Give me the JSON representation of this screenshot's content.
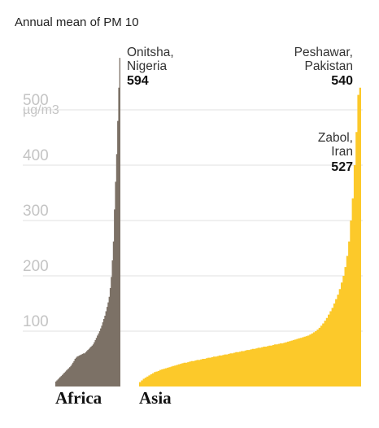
{
  "chart_data": {
    "type": "area",
    "title": "Annual mean of PM 10",
    "unit": "µg/m3",
    "ylim": [
      0,
      610
    ],
    "yticks": [
      100,
      200,
      300,
      400,
      500
    ],
    "grid": true,
    "colors": {
      "africa": "#7c7166",
      "asia": "#fcc92a",
      "grid": "#e2e2e2",
      "tick": "#c4c4c4"
    },
    "series": [
      {
        "name": "Africa",
        "values": [
          9,
          11,
          13,
          15,
          17,
          19,
          21,
          23,
          25,
          27,
          29,
          31,
          33,
          35,
          37,
          40,
          43,
          46,
          50,
          52,
          54,
          55,
          56,
          57,
          58,
          59,
          60,
          60,
          62,
          64,
          66,
          68,
          70,
          72,
          74,
          76,
          80,
          84,
          88,
          92,
          96,
          100,
          105,
          110,
          116,
          122,
          128,
          136,
          144,
          152,
          162,
          178,
          198,
          228,
          262,
          320,
          370,
          420,
          480,
          540,
          594
        ]
      },
      {
        "name": "Asia",
        "values": [
          8,
          11,
          14,
          16,
          18,
          20,
          22,
          24,
          26,
          27,
          28,
          30,
          31,
          32,
          33,
          34,
          35,
          36,
          37,
          38,
          39,
          40,
          41,
          42,
          43,
          43,
          44,
          45,
          46,
          46,
          47,
          48,
          48,
          49,
          50,
          50,
          51,
          52,
          52,
          53,
          54,
          54,
          55,
          56,
          56,
          57,
          58,
          58,
          59,
          60,
          60,
          61,
          62,
          62,
          63,
          64,
          64,
          65,
          66,
          66,
          67,
          68,
          68,
          69,
          70,
          70,
          71,
          72,
          72,
          73,
          74,
          74,
          75,
          76,
          76,
          77,
          78,
          78,
          79,
          80,
          81,
          82,
          83,
          84,
          85,
          86,
          87,
          88,
          89,
          90,
          91,
          92,
          94,
          96,
          98,
          100,
          103,
          106,
          110,
          114,
          119,
          124,
          130,
          136,
          142,
          150,
          158,
          166,
          176,
          188,
          200,
          216,
          236,
          262,
          300,
          340,
          400,
          460,
          527,
          540
        ]
      }
    ],
    "annotations": [
      {
        "series": "Africa",
        "name_lines": [
          "Onitsha,",
          "Nigeria"
        ],
        "value": "594"
      },
      {
        "series": "Asia",
        "name_lines": [
          "Peshawar,",
          "Pakistan"
        ],
        "value": "540"
      },
      {
        "series": "Asia",
        "name_lines": [
          "Zabol,",
          "Iran"
        ],
        "value": "527"
      }
    ]
  }
}
